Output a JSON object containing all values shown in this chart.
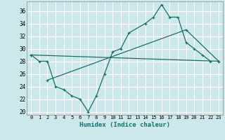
{
  "xlabel": "Humidex (Indice chaleur)",
  "bg_color": "#cce8ea",
  "grid_color": "#ffffff",
  "line_color": "#1a6e6a",
  "xlim": [
    -0.5,
    23.5
  ],
  "ylim": [
    19.5,
    37.5
  ],
  "yticks": [
    20,
    22,
    24,
    26,
    28,
    30,
    32,
    34,
    36
  ],
  "xticks": [
    0,
    1,
    2,
    3,
    4,
    5,
    6,
    7,
    8,
    9,
    10,
    11,
    12,
    13,
    14,
    15,
    16,
    17,
    18,
    19,
    20,
    21,
    22,
    23
  ],
  "line1_x": [
    0,
    1,
    2,
    3,
    4,
    5,
    6,
    7,
    8,
    9,
    10,
    11,
    12,
    14,
    15,
    16,
    17,
    18,
    19,
    20,
    21,
    22
  ],
  "line1_y": [
    29,
    28,
    28,
    24,
    23.5,
    22.5,
    22,
    20,
    22.5,
    26,
    29.5,
    30,
    32.5,
    34,
    35,
    37,
    35,
    35,
    31,
    30,
    29,
    28
  ],
  "line2_x": [
    0,
    23
  ],
  "line2_y": [
    29,
    28
  ],
  "line3_x": [
    2,
    19,
    23
  ],
  "line3_y": [
    25,
    33,
    28
  ]
}
